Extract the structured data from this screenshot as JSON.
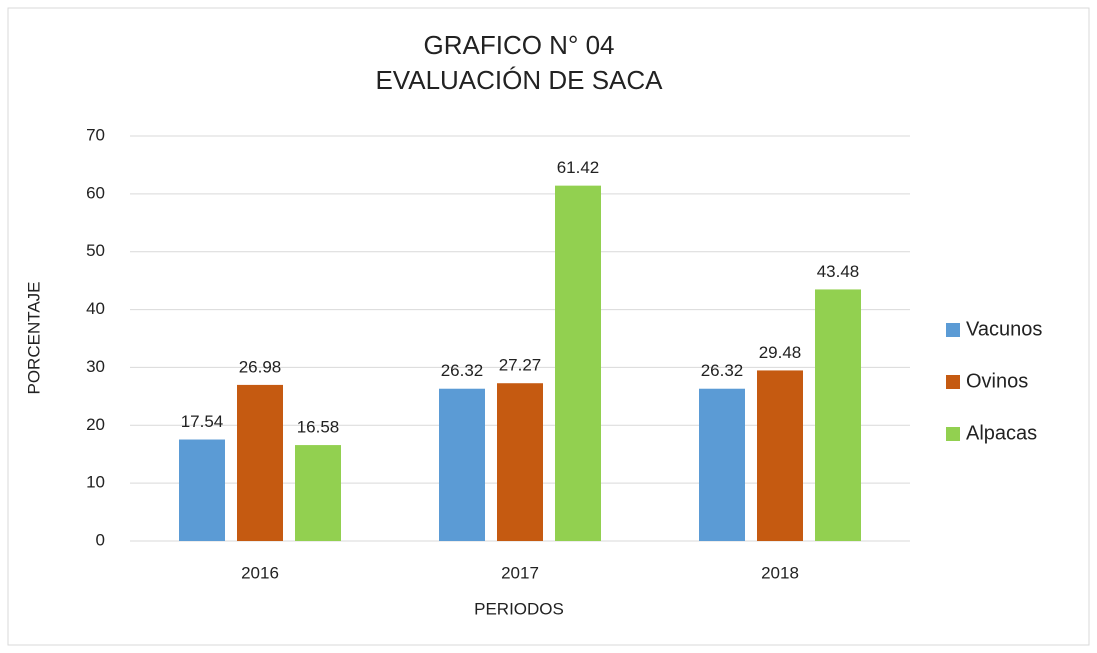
{
  "chart_data": {
    "type": "bar",
    "title": "GRAFICO N° 04",
    "subtitle": "EVALUACIÓN DE SACA",
    "x_label": "PERIODOS",
    "y_label": "PORCENTAJE",
    "categories": [
      "2016",
      "2017",
      "2018"
    ],
    "series": [
      {
        "name": "Vacunos",
        "color": "#5b9bd5",
        "values": [
          17.54,
          26.32,
          26.32
        ]
      },
      {
        "name": "Ovinos",
        "color": "#c55a11",
        "values": [
          26.98,
          27.27,
          29.48
        ]
      },
      {
        "name": "Alpacas",
        "color": "#92d050",
        "values": [
          16.58,
          61.42,
          43.48
        ]
      }
    ],
    "ylim": [
      0,
      70
    ],
    "yticks": [
      0,
      10,
      20,
      30,
      40,
      50,
      60,
      70
    ],
    "grid": true,
    "legend": "right"
  }
}
